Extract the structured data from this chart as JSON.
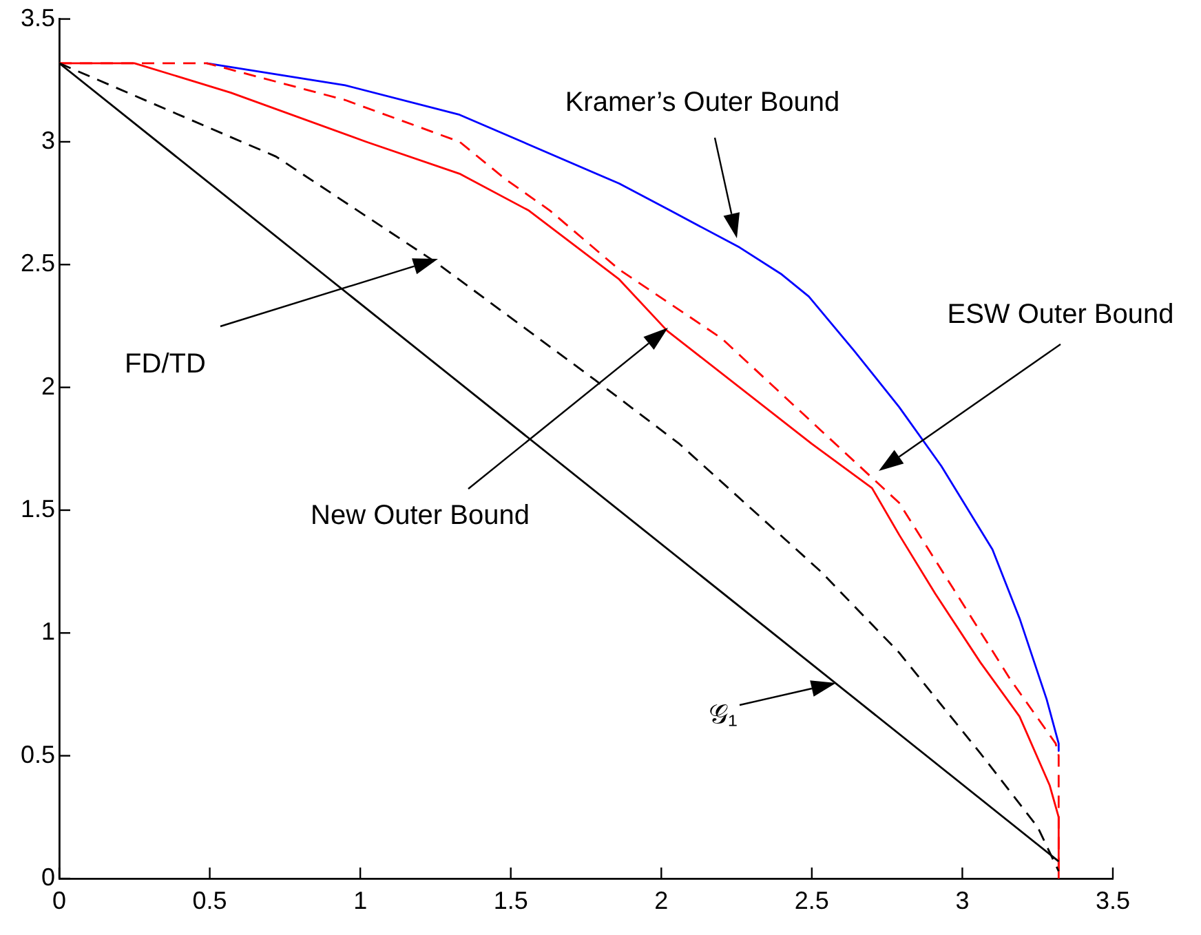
{
  "chart_data": {
    "type": "line",
    "xlim": [
      0,
      3.5
    ],
    "ylim": [
      0,
      3.5
    ],
    "xticks": [
      0,
      0.5,
      1,
      1.5,
      2,
      2.5,
      3,
      3.5
    ],
    "yticks": [
      0,
      0.5,
      1,
      1.5,
      2,
      2.5,
      3,
      3.5
    ],
    "grid": false,
    "legend": false,
    "marker": "none",
    "series": [
      {
        "color": "#000000",
        "line_style": "solid",
        "x": [
          0,
          3.32
        ],
        "values": [
          3.32,
          0.07
        ]
      },
      {
        "color": "#000000",
        "line_style": "dashed",
        "x": [
          0,
          0.72,
          1.25,
          1.78,
          2.06,
          2.53,
          2.79,
          3.06,
          3.25,
          3.32
        ],
        "values": [
          3.32,
          2.94,
          2.51,
          2.03,
          1.77,
          1.25,
          0.92,
          0.51,
          0.21,
          0.03
        ]
      },
      {
        "color": "#ff0000",
        "line_style": "solid",
        "x": [
          0,
          0.25,
          0.57,
          1.02,
          1.33,
          1.56,
          1.86,
          2.02,
          2.5,
          2.7,
          2.79,
          2.91,
          3.06,
          3.19,
          3.29,
          3.32,
          3.32
        ],
        "values": [
          3.32,
          3.32,
          3.2,
          3,
          2.87,
          2.72,
          2.44,
          2.23,
          1.77,
          1.59,
          1.4,
          1.16,
          0.88,
          0.66,
          0.38,
          0.25,
          0
        ]
      },
      {
        "color": "#ff0000",
        "line_style": "dashed",
        "x": [
          0,
          0.49,
          0.95,
          1.33,
          1.48,
          1.63,
          1.86,
          2.2,
          2.64,
          2.79,
          2.97,
          3.16,
          3.31,
          3.32,
          3.32
        ],
        "values": [
          3.32,
          3.32,
          3.17,
          3,
          2.85,
          2.72,
          2.48,
          2.2,
          1.7,
          1.53,
          1.18,
          0.81,
          0.55,
          0.5,
          0
        ]
      },
      {
        "color": "#0000ff",
        "line_style": "solid",
        "x": [
          0.49,
          0.95,
          1.33,
          1.86,
          2.03,
          2.26,
          2.4,
          2.49,
          2.64,
          2.79,
          2.93,
          3.1,
          3.19,
          3.28,
          3.32,
          3.32
        ],
        "values": [
          3.32,
          3.23,
          3.11,
          2.83,
          2.72,
          2.57,
          2.46,
          2.37,
          2.15,
          1.92,
          1.68,
          1.34,
          1.06,
          0.73,
          0.55,
          0.52
        ]
      }
    ],
    "annotations": [
      "Kramer’s Outer Bound",
      "FD/TD",
      "New Outer Bound",
      "ESW Outer Bound",
      "𝒢₁"
    ]
  }
}
